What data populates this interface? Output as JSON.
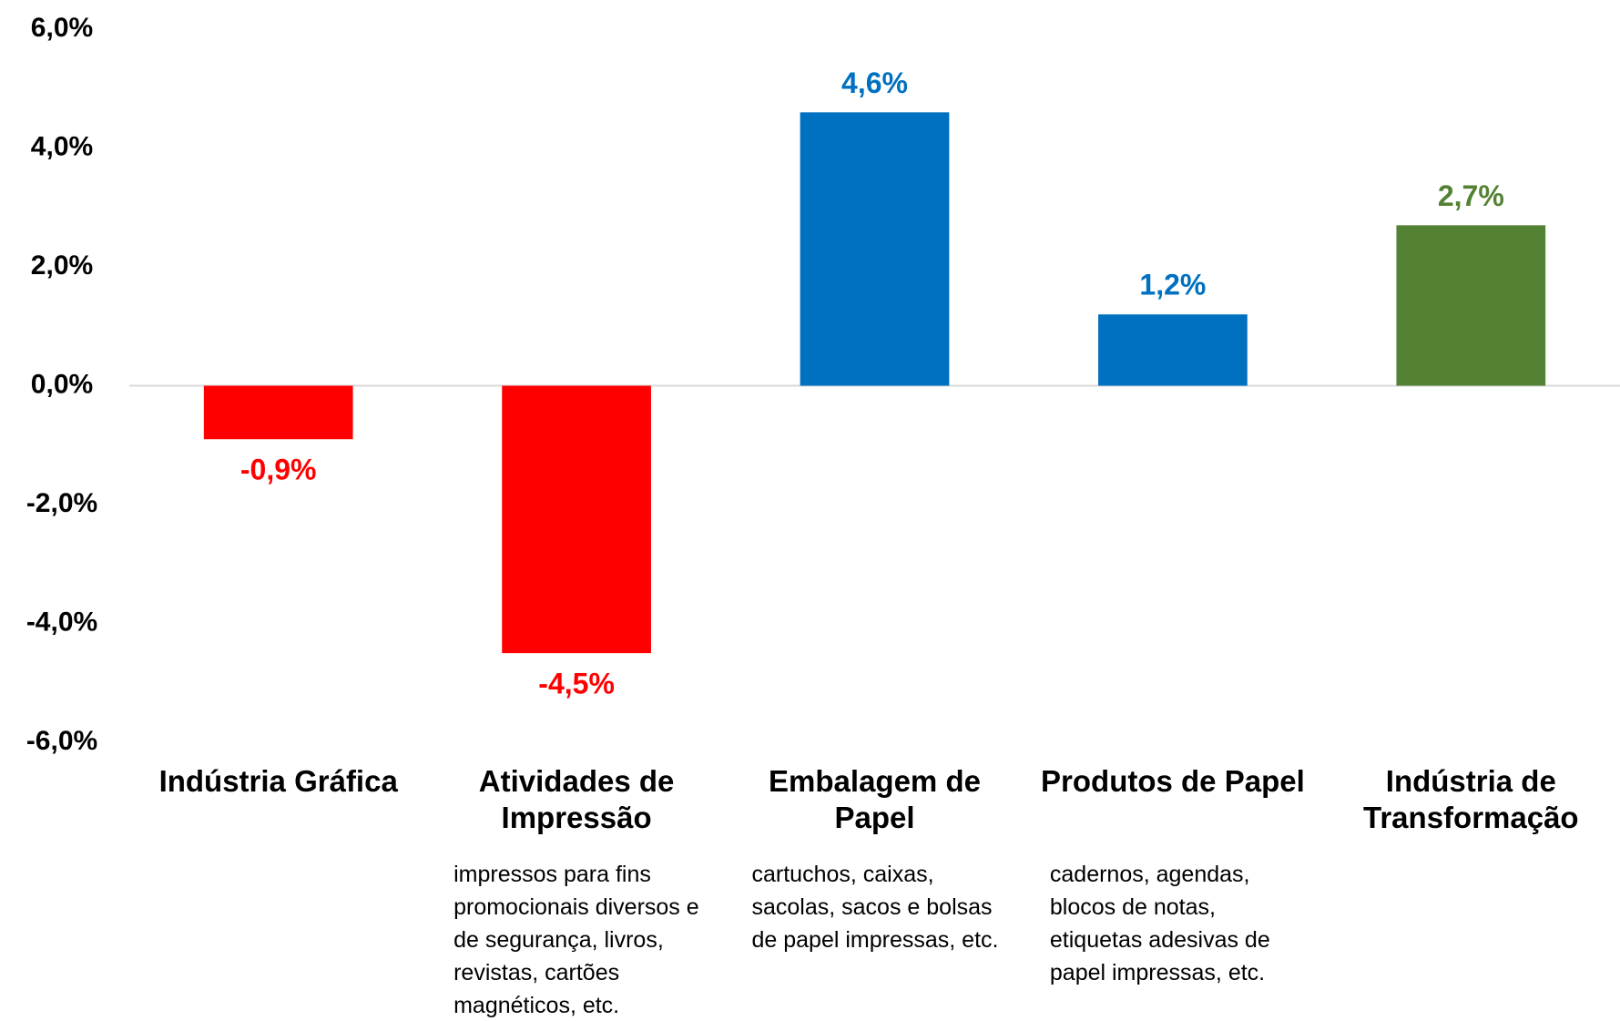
{
  "chart_data": {
    "type": "bar",
    "categories": [
      "Indústria Gráfica",
      "Atividades de Impressão",
      "Embalagem de Papel",
      "Produtos de Papel",
      "Indústria de Transformação"
    ],
    "descriptions": [
      null,
      "impressos para fins promocionais diversos e de segurança, livros, revistas, cartões magnéticos, etc.",
      "cartuchos, caixas, sacolas, sacos e bolsas de papel impressas, etc.",
      "cadernos, agendas, blocos de notas, etiquetas adesivas de papel impressas, etc.",
      null
    ],
    "values": [
      -0.9,
      -4.5,
      4.6,
      1.2,
      2.7
    ],
    "value_labels": [
      "-0,9%",
      "-4,5%",
      "4,6%",
      "1,2%",
      "2,7%"
    ],
    "colors": [
      "#ff0000",
      "#ff0000",
      "#0070c0",
      "#0070c0",
      "#548235"
    ],
    "ylim": [
      -6,
      6
    ],
    "yticks": [
      {
        "value": 6,
        "label": "6,0%"
      },
      {
        "value": 4,
        "label": "4,0%"
      },
      {
        "value": 2,
        "label": "2,0%"
      },
      {
        "value": 0,
        "label": "0,0%"
      },
      {
        "value": -2,
        "label": "-2,0%"
      },
      {
        "value": -4,
        "label": "-4,0%"
      },
      {
        "value": -6,
        "label": "-6,0%"
      }
    ]
  }
}
